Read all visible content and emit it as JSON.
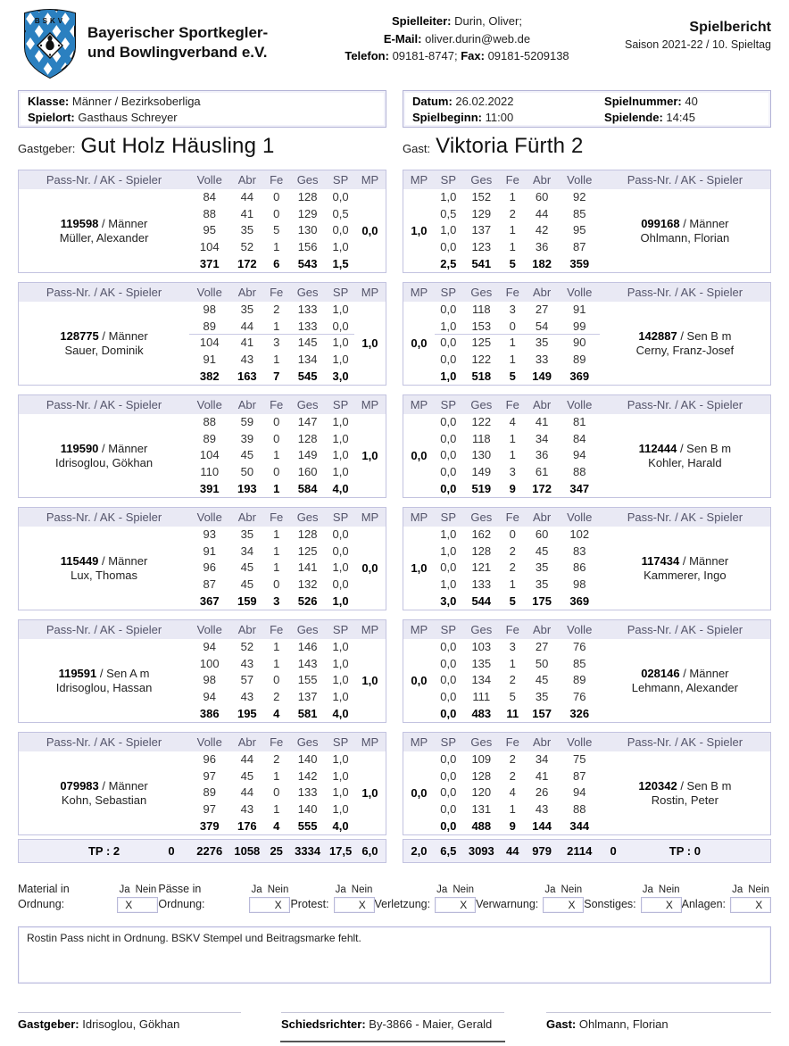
{
  "header": {
    "org_line1": "Bayerischer Sportkegler-",
    "org_line2": "und Bowlingverband e.V.",
    "logo_letters": "BSKV",
    "contact": {
      "spielleiter_label": "Spielleiter:",
      "spielleiter": "Durin, Oliver;",
      "email_label": "E-Mail:",
      "email": "oliver.durin@web.de",
      "telefon_label": "Telefon:",
      "telefon": "09181-8747;",
      "fax_label": "Fax:",
      "fax": "09181-5209138"
    },
    "title": "Spielbericht",
    "subtitle": "Saison 2021-22 / 10. Spieltag"
  },
  "info": {
    "klasse_label": "Klasse:",
    "klasse": "Männer / Bezirksoberliga",
    "spielort_label": "Spielort:",
    "spielort": "Gasthaus Schreyer",
    "datum_label": "Datum:",
    "datum": "26.02.2022",
    "spielnummer_label": "Spielnummer:",
    "spielnummer": "40",
    "spielbeginn_label": "Spielbeginn:",
    "spielbeginn": "11:00",
    "spielende_label": "Spielende:",
    "spielende": "14:45"
  },
  "teams": {
    "home_label": "Gastgeber:",
    "home_name": "Gut Holz Häusling 1",
    "guest_label": "Gast:",
    "guest_name": "Viktoria Fürth 2"
  },
  "table": {
    "left_headers": [
      "Pass-Nr. / AK - Spieler",
      "Volle",
      "Abr",
      "Fe",
      "Ges",
      "SP",
      "MP"
    ],
    "right_headers": [
      "MP",
      "SP",
      "Ges",
      "Fe",
      "Abr",
      "Volle",
      "Pass-Nr. / AK - Spieler"
    ]
  },
  "matches": [
    {
      "divider_after_lane": null,
      "left": {
        "pass": "119598",
        "ak": "Männer",
        "name": "Müller, Alexander",
        "mp": "0,0",
        "lanes": [
          {
            "volle": "84",
            "abr": "44",
            "fe": "0",
            "ges": "128",
            "sp": "0,0"
          },
          {
            "volle": "88",
            "abr": "41",
            "fe": "0",
            "ges": "129",
            "sp": "0,5"
          },
          {
            "volle": "95",
            "abr": "35",
            "fe": "5",
            "ges": "130",
            "sp": "0,0"
          },
          {
            "volle": "104",
            "abr": "52",
            "fe": "1",
            "ges": "156",
            "sp": "1,0"
          }
        ],
        "total": {
          "volle": "371",
          "abr": "172",
          "fe": "6",
          "ges": "543",
          "sp": "1,5"
        }
      },
      "right": {
        "pass": "099168",
        "ak": "Männer",
        "name": "Ohlmann, Florian",
        "mp": "1,0",
        "lanes": [
          {
            "sp": "1,0",
            "ges": "152",
            "fe": "1",
            "abr": "60",
            "volle": "92"
          },
          {
            "sp": "0,5",
            "ges": "129",
            "fe": "2",
            "abr": "44",
            "volle": "85"
          },
          {
            "sp": "1,0",
            "ges": "137",
            "fe": "1",
            "abr": "42",
            "volle": "95"
          },
          {
            "sp": "0,0",
            "ges": "123",
            "fe": "1",
            "abr": "36",
            "volle": "87"
          }
        ],
        "total": {
          "sp": "2,5",
          "ges": "541",
          "fe": "5",
          "abr": "182",
          "volle": "359"
        }
      }
    },
    {
      "divider_after_lane": 2,
      "left": {
        "pass": "128775",
        "ak": "Männer",
        "name": "Sauer, Dominik",
        "mp": "1,0",
        "lanes": [
          {
            "volle": "98",
            "abr": "35",
            "fe": "2",
            "ges": "133",
            "sp": "1,0"
          },
          {
            "volle": "89",
            "abr": "44",
            "fe": "1",
            "ges": "133",
            "sp": "0,0"
          },
          {
            "volle": "104",
            "abr": "41",
            "fe": "3",
            "ges": "145",
            "sp": "1,0"
          },
          {
            "volle": "91",
            "abr": "43",
            "fe": "1",
            "ges": "134",
            "sp": "1,0"
          }
        ],
        "total": {
          "volle": "382",
          "abr": "163",
          "fe": "7",
          "ges": "545",
          "sp": "3,0"
        }
      },
      "right": {
        "pass": "142887",
        "ak": "Sen B m",
        "name": "Cerny, Franz-Josef",
        "mp": "0,0",
        "lanes": [
          {
            "sp": "0,0",
            "ges": "118",
            "fe": "3",
            "abr": "27",
            "volle": "91"
          },
          {
            "sp": "1,0",
            "ges": "153",
            "fe": "0",
            "abr": "54",
            "volle": "99"
          },
          {
            "sp": "0,0",
            "ges": "125",
            "fe": "1",
            "abr": "35",
            "volle": "90"
          },
          {
            "sp": "0,0",
            "ges": "122",
            "fe": "1",
            "abr": "33",
            "volle": "89"
          }
        ],
        "total": {
          "sp": "1,0",
          "ges": "518",
          "fe": "5",
          "abr": "149",
          "volle": "369"
        }
      }
    },
    {
      "divider_after_lane": null,
      "left": {
        "pass": "119590",
        "ak": "Männer",
        "name": "Idrisoglou, Gökhan",
        "mp": "1,0",
        "lanes": [
          {
            "volle": "88",
            "abr": "59",
            "fe": "0",
            "ges": "147",
            "sp": "1,0"
          },
          {
            "volle": "89",
            "abr": "39",
            "fe": "0",
            "ges": "128",
            "sp": "1,0"
          },
          {
            "volle": "104",
            "abr": "45",
            "fe": "1",
            "ges": "149",
            "sp": "1,0"
          },
          {
            "volle": "110",
            "abr": "50",
            "fe": "0",
            "ges": "160",
            "sp": "1,0"
          }
        ],
        "total": {
          "volle": "391",
          "abr": "193",
          "fe": "1",
          "ges": "584",
          "sp": "4,0"
        }
      },
      "right": {
        "pass": "112444",
        "ak": "Sen B m",
        "name": "Kohler, Harald",
        "mp": "0,0",
        "lanes": [
          {
            "sp": "0,0",
            "ges": "122",
            "fe": "4",
            "abr": "41",
            "volle": "81"
          },
          {
            "sp": "0,0",
            "ges": "118",
            "fe": "1",
            "abr": "34",
            "volle": "84"
          },
          {
            "sp": "0,0",
            "ges": "130",
            "fe": "1",
            "abr": "36",
            "volle": "94"
          },
          {
            "sp": "0,0",
            "ges": "149",
            "fe": "3",
            "abr": "61",
            "volle": "88"
          }
        ],
        "total": {
          "sp": "0,0",
          "ges": "519",
          "fe": "9",
          "abr": "172",
          "volle": "347"
        }
      }
    },
    {
      "divider_after_lane": null,
      "left": {
        "pass": "115449",
        "ak": "Männer",
        "name": "Lux, Thomas",
        "mp": "0,0",
        "lanes": [
          {
            "volle": "93",
            "abr": "35",
            "fe": "1",
            "ges": "128",
            "sp": "0,0"
          },
          {
            "volle": "91",
            "abr": "34",
            "fe": "1",
            "ges": "125",
            "sp": "0,0"
          },
          {
            "volle": "96",
            "abr": "45",
            "fe": "1",
            "ges": "141",
            "sp": "1,0"
          },
          {
            "volle": "87",
            "abr": "45",
            "fe": "0",
            "ges": "132",
            "sp": "0,0"
          }
        ],
        "total": {
          "volle": "367",
          "abr": "159",
          "fe": "3",
          "ges": "526",
          "sp": "1,0"
        }
      },
      "right": {
        "pass": "117434",
        "ak": "Männer",
        "name": "Kammerer, Ingo",
        "mp": "1,0",
        "lanes": [
          {
            "sp": "1,0",
            "ges": "162",
            "fe": "0",
            "abr": "60",
            "volle": "102"
          },
          {
            "sp": "1,0",
            "ges": "128",
            "fe": "2",
            "abr": "45",
            "volle": "83"
          },
          {
            "sp": "0,0",
            "ges": "121",
            "fe": "2",
            "abr": "35",
            "volle": "86"
          },
          {
            "sp": "1,0",
            "ges": "133",
            "fe": "1",
            "abr": "35",
            "volle": "98"
          }
        ],
        "total": {
          "sp": "3,0",
          "ges": "544",
          "fe": "5",
          "abr": "175",
          "volle": "369"
        }
      }
    },
    {
      "divider_after_lane": null,
      "left": {
        "pass": "119591",
        "ak": "Sen A m",
        "name": "Idrisoglou, Hassan",
        "mp": "1,0",
        "lanes": [
          {
            "volle": "94",
            "abr": "52",
            "fe": "1",
            "ges": "146",
            "sp": "1,0"
          },
          {
            "volle": "100",
            "abr": "43",
            "fe": "1",
            "ges": "143",
            "sp": "1,0"
          },
          {
            "volle": "98",
            "abr": "57",
            "fe": "0",
            "ges": "155",
            "sp": "1,0"
          },
          {
            "volle": "94",
            "abr": "43",
            "fe": "2",
            "ges": "137",
            "sp": "1,0"
          }
        ],
        "total": {
          "volle": "386",
          "abr": "195",
          "fe": "4",
          "ges": "581",
          "sp": "4,0"
        }
      },
      "right": {
        "pass": "028146",
        "ak": "Männer",
        "name": "Lehmann, Alexander",
        "mp": "0,0",
        "lanes": [
          {
            "sp": "0,0",
            "ges": "103",
            "fe": "3",
            "abr": "27",
            "volle": "76"
          },
          {
            "sp": "0,0",
            "ges": "135",
            "fe": "1",
            "abr": "50",
            "volle": "85"
          },
          {
            "sp": "0,0",
            "ges": "134",
            "fe": "2",
            "abr": "45",
            "volle": "89"
          },
          {
            "sp": "0,0",
            "ges": "111",
            "fe": "5",
            "abr": "35",
            "volle": "76"
          }
        ],
        "total": {
          "sp": "0,0",
          "ges": "483",
          "fe": "11",
          "abr": "157",
          "volle": "326"
        }
      }
    },
    {
      "divider_after_lane": null,
      "left": {
        "pass": "079983",
        "ak": "Männer",
        "name": "Kohn, Sebastian",
        "mp": "1,0",
        "lanes": [
          {
            "volle": "96",
            "abr": "44",
            "fe": "2",
            "ges": "140",
            "sp": "1,0"
          },
          {
            "volle": "97",
            "abr": "45",
            "fe": "1",
            "ges": "142",
            "sp": "1,0"
          },
          {
            "volle": "89",
            "abr": "44",
            "fe": "0",
            "ges": "133",
            "sp": "1,0"
          },
          {
            "volle": "97",
            "abr": "43",
            "fe": "1",
            "ges": "140",
            "sp": "1,0"
          }
        ],
        "total": {
          "volle": "379",
          "abr": "176",
          "fe": "4",
          "ges": "555",
          "sp": "4,0"
        }
      },
      "right": {
        "pass": "120342",
        "ak": "Sen B m",
        "name": "Rostin, Peter",
        "mp": "0,0",
        "lanes": [
          {
            "sp": "0,0",
            "ges": "109",
            "fe": "2",
            "abr": "34",
            "volle": "75"
          },
          {
            "sp": "0,0",
            "ges": "128",
            "fe": "2",
            "abr": "41",
            "volle": "87"
          },
          {
            "sp": "0,0",
            "ges": "120",
            "fe": "4",
            "abr": "26",
            "volle": "94"
          },
          {
            "sp": "0,0",
            "ges": "131",
            "fe": "1",
            "abr": "43",
            "volle": "88"
          }
        ],
        "total": {
          "sp": "0,0",
          "ges": "488",
          "fe": "9",
          "abr": "144",
          "volle": "344"
        }
      }
    }
  ],
  "totals": {
    "home": {
      "tp": "TP : 2",
      "extra": "0",
      "volle": "2276",
      "abr": "1058",
      "fe": "25",
      "ges": "3334",
      "sp": "17,5",
      "mp": "6,0"
    },
    "guest": {
      "mp": "2,0",
      "sp": "6,5",
      "ges": "3093",
      "fe": "44",
      "abr": "979",
      "volle": "2114",
      "extra": "0",
      "tp": "TP : 0"
    }
  },
  "checks": {
    "ja_label": "Ja",
    "nein_label": "Nein",
    "mark": "X",
    "items": [
      {
        "label": "Material in Ordnung:",
        "value": "ja"
      },
      {
        "label": "Pässe in Ordnung:",
        "value": "nein"
      },
      {
        "label": "Protest:",
        "value": "nein"
      },
      {
        "label": "Verletzung:",
        "value": "nein"
      },
      {
        "label": "Verwarnung:",
        "value": "nein"
      },
      {
        "label": "Sonstiges:",
        "value": "nein"
      },
      {
        "label": "Anlagen:",
        "value": "nein"
      }
    ]
  },
  "remark": "Rostin Pass nicht in Ordnung. BSKV Stempel und Beitragsmarke fehlt.",
  "signatures": [
    {
      "label": "Gastgeber:",
      "name": "Idrisoglou, Gökhan"
    },
    {
      "label": "Schiedsrichter:",
      "name": "By-3866 - Maier, Gerald"
    },
    {
      "label": "Gast:",
      "name": "Ohlmann, Florian"
    }
  ],
  "colors": {
    "accent_border": "#c3c3e0",
    "header_bg": "#e9e9f4",
    "totals_bg": "#eeeef8",
    "logo_blue": "#2b80c0"
  }
}
